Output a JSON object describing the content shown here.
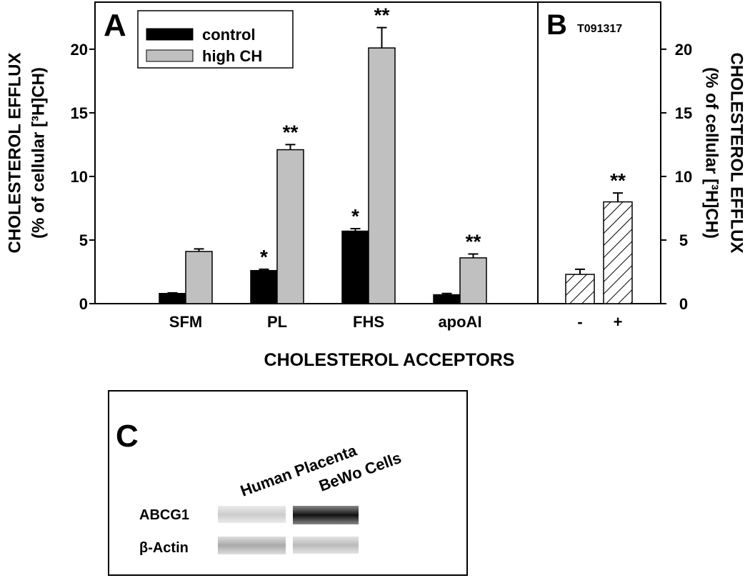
{
  "chart_data": [
    {
      "type": "bar",
      "panel": "A",
      "categories": [
        "SFM",
        "PL",
        "FHS",
        "apoAI"
      ],
      "series": [
        {
          "name": "control",
          "color": "#000000",
          "values": [
            0.8,
            2.6,
            5.7,
            0.7
          ],
          "errors": [
            0.05,
            0.1,
            0.2,
            0.1
          ],
          "significance": [
            null,
            "*",
            "*",
            null
          ]
        },
        {
          "name": "high CH",
          "color": "#c0c0c0",
          "values": [
            4.1,
            12.1,
            20.1,
            3.6
          ],
          "errors": [
            0.2,
            0.4,
            1.6,
            0.3
          ],
          "significance": [
            null,
            "**",
            "**",
            "**"
          ]
        }
      ],
      "ylim": [
        0,
        23.7
      ],
      "yticks": [
        0,
        5,
        10,
        15,
        20
      ],
      "ylabel": [
        "CHOLESTEROL EFFLUX",
        "(% of cellular [³H]CH)"
      ],
      "xlabel": "CHOLESTEROL ACCEPTORS",
      "legend": "upper-left"
    },
    {
      "type": "bar",
      "panel": "B",
      "subtitle": "T091317",
      "categories": [
        "-",
        "+"
      ],
      "values": [
        2.3,
        8.0
      ],
      "errors": [
        0.4,
        0.7
      ],
      "significance": [
        null,
        "**"
      ],
      "color": "#ffffff",
      "pattern": "hatch",
      "ylim": [
        0,
        23.7
      ],
      "yticks": [
        0,
        5,
        10,
        15,
        20
      ],
      "yaxis": "right",
      "ylabel": [
        "CHOLESTEROL EFFLUX",
        "(% of cellular [³H]CH)"
      ]
    }
  ],
  "blot": {
    "panel": "C",
    "lanes": [
      "Human Placenta",
      "BeWo Cells"
    ],
    "rows": [
      "ABCG1",
      "β-Actin"
    ]
  }
}
